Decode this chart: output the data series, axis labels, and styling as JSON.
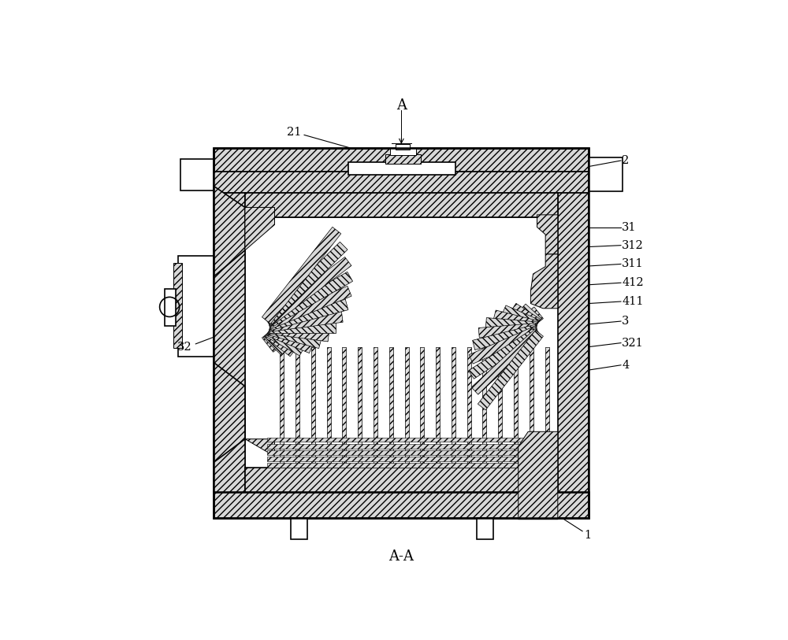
{
  "bg_color": "#ffffff",
  "line_color": "#000000",
  "title": "A-A",
  "figsize": [
    10.0,
    8.13
  ],
  "dpi": 100
}
